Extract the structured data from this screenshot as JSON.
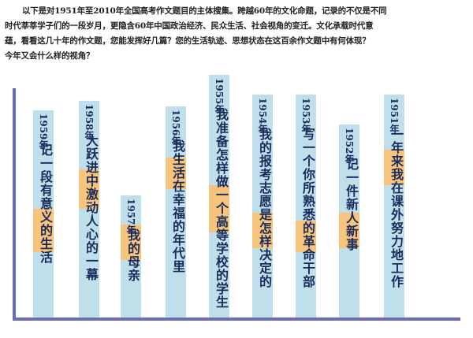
{
  "intro": {
    "lines": [
      "以下是对1951年至2010年全国高考作文题目的主体搜集。跨越60年的文化命题，记录的不仅是不同",
      "时代莘莘学子们的一段岁月，更隐含60年中国政治经济、民众生活、社会视角的变迁。文化承载时代意",
      "蕴，看看这几十年的作文题，您能发挥好几篇？您的生活轨迹、思想状态在这百余作文题中有何体现？",
      "今年又会什么样的视角？"
    ]
  },
  "items": [
    {
      "year": "1959年",
      "title": "记一段有意义的生活"
    },
    {
      "year": "1958年",
      "title": "大跃进中激动人心的一幕"
    },
    {
      "year": "1957年",
      "title": "我的母亲"
    },
    {
      "year": "1956年",
      "title": "我生活在幸福的年代里"
    },
    {
      "year": "1955年",
      "title": "我准备怎样做一个高等学校的学生"
    },
    {
      "year": "1954年",
      "title": "我的报考志愿是怎样决定的"
    },
    {
      "year": "1953年",
      "title": "写一个你所熟悉的革命干部"
    },
    {
      "year": "1952年",
      "title": "记一件新人新事"
    },
    {
      "year": "1951年",
      "title": "一年来我在课外努力地工作"
    }
  ]
}
